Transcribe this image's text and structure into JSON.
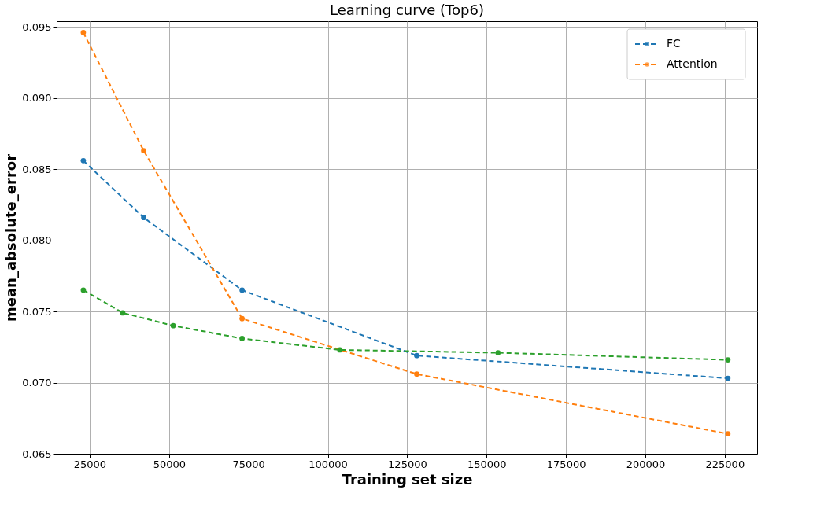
{
  "chart_data": {
    "type": "line",
    "title": "Learning curve (Top6)",
    "xlabel": "Training set size",
    "ylabel": "mean_absolute_error",
    "xlim": [
      14600,
      235200
    ],
    "xticks": [
      25000,
      50000,
      75000,
      100000,
      125000,
      150000,
      175000,
      200000,
      225000
    ],
    "ylim": [
      0.065,
      0.0954
    ],
    "yticks": [
      0.065,
      {
        "value": 0.07,
        "label": "0.070"
      },
      0.075,
      {
        "value": 0.08,
        "label": "0.080"
      },
      0.085,
      {
        "value": 0.09,
        "label": "0.090"
      },
      0.095
    ],
    "grid": true,
    "legend": "top right",
    "marker": "circle",
    "line_style": "dashed",
    "series": [
      {
        "name": "FC",
        "color": "#1f77b4",
        "x": [
          23000,
          42000,
          73000,
          128000,
          226000
        ],
        "values": [
          0.0856,
          0.0816,
          0.0765,
          0.0719,
          0.0703
        ]
      },
      {
        "name": "Attention",
        "color": "#ff7f0e",
        "x": [
          23000,
          42000,
          73000,
          128000,
          226000
        ],
        "values": [
          0.0946,
          0.0863,
          0.0745,
          0.0706,
          0.0664
        ]
      },
      {
        "color": "#2ca02c",
        "x": [
          23000,
          35400,
          51300,
          73000,
          103800,
          153600,
          226000
        ],
        "values": [
          0.0765,
          0.0749,
          0.074,
          0.0731,
          0.0723,
          0.0721,
          0.0716
        ]
      }
    ]
  }
}
